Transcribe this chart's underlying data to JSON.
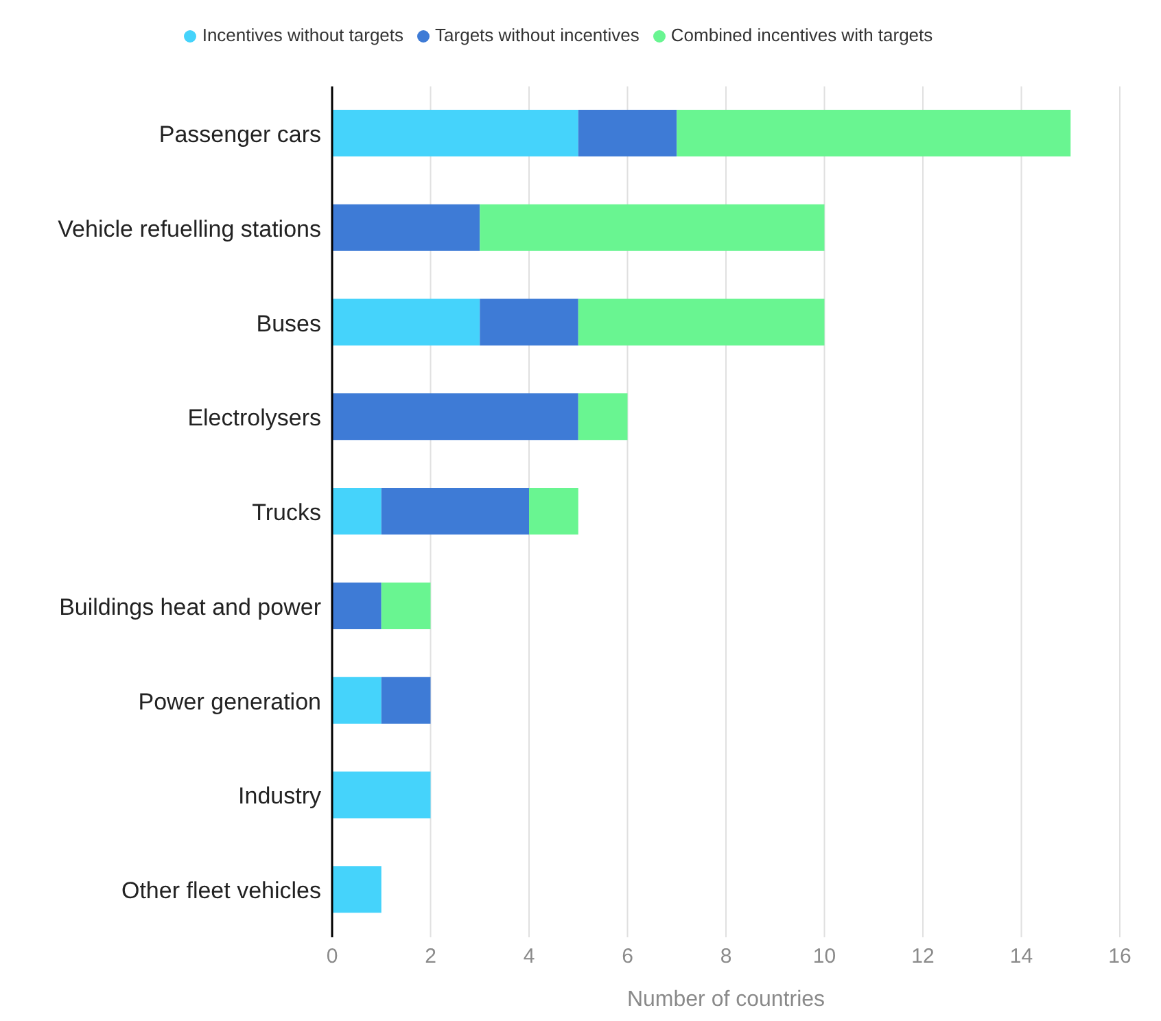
{
  "chart_data": {
    "type": "bar",
    "orientation": "horizontal",
    "stacked": true,
    "categories": [
      "Passenger cars",
      "Vehicle refuelling stations",
      "Buses",
      "Electrolysers",
      "Trucks",
      "Buildings heat and power",
      "Power generation",
      "Industry",
      "Other fleet vehicles"
    ],
    "series": [
      {
        "name": "Incentives without targets",
        "color": "#45d3fb",
        "values": [
          5,
          0,
          3,
          0,
          1,
          0,
          1,
          2,
          1
        ]
      },
      {
        "name": "Targets without incentives",
        "color": "#3e7bd6",
        "values": [
          2,
          3,
          2,
          5,
          3,
          1,
          1,
          0,
          0
        ]
      },
      {
        "name": "Combined incentives with targets",
        "color": "#69f591",
        "values": [
          8,
          7,
          5,
          1,
          1,
          1,
          0,
          0,
          0
        ]
      }
    ],
    "xlabel": "Number of countries",
    "xlim": [
      0,
      16
    ],
    "xticks": [
      0,
      2,
      4,
      6,
      8,
      10,
      12,
      14,
      16
    ],
    "grid": "x",
    "legend": "top",
    "marker": "circle"
  }
}
